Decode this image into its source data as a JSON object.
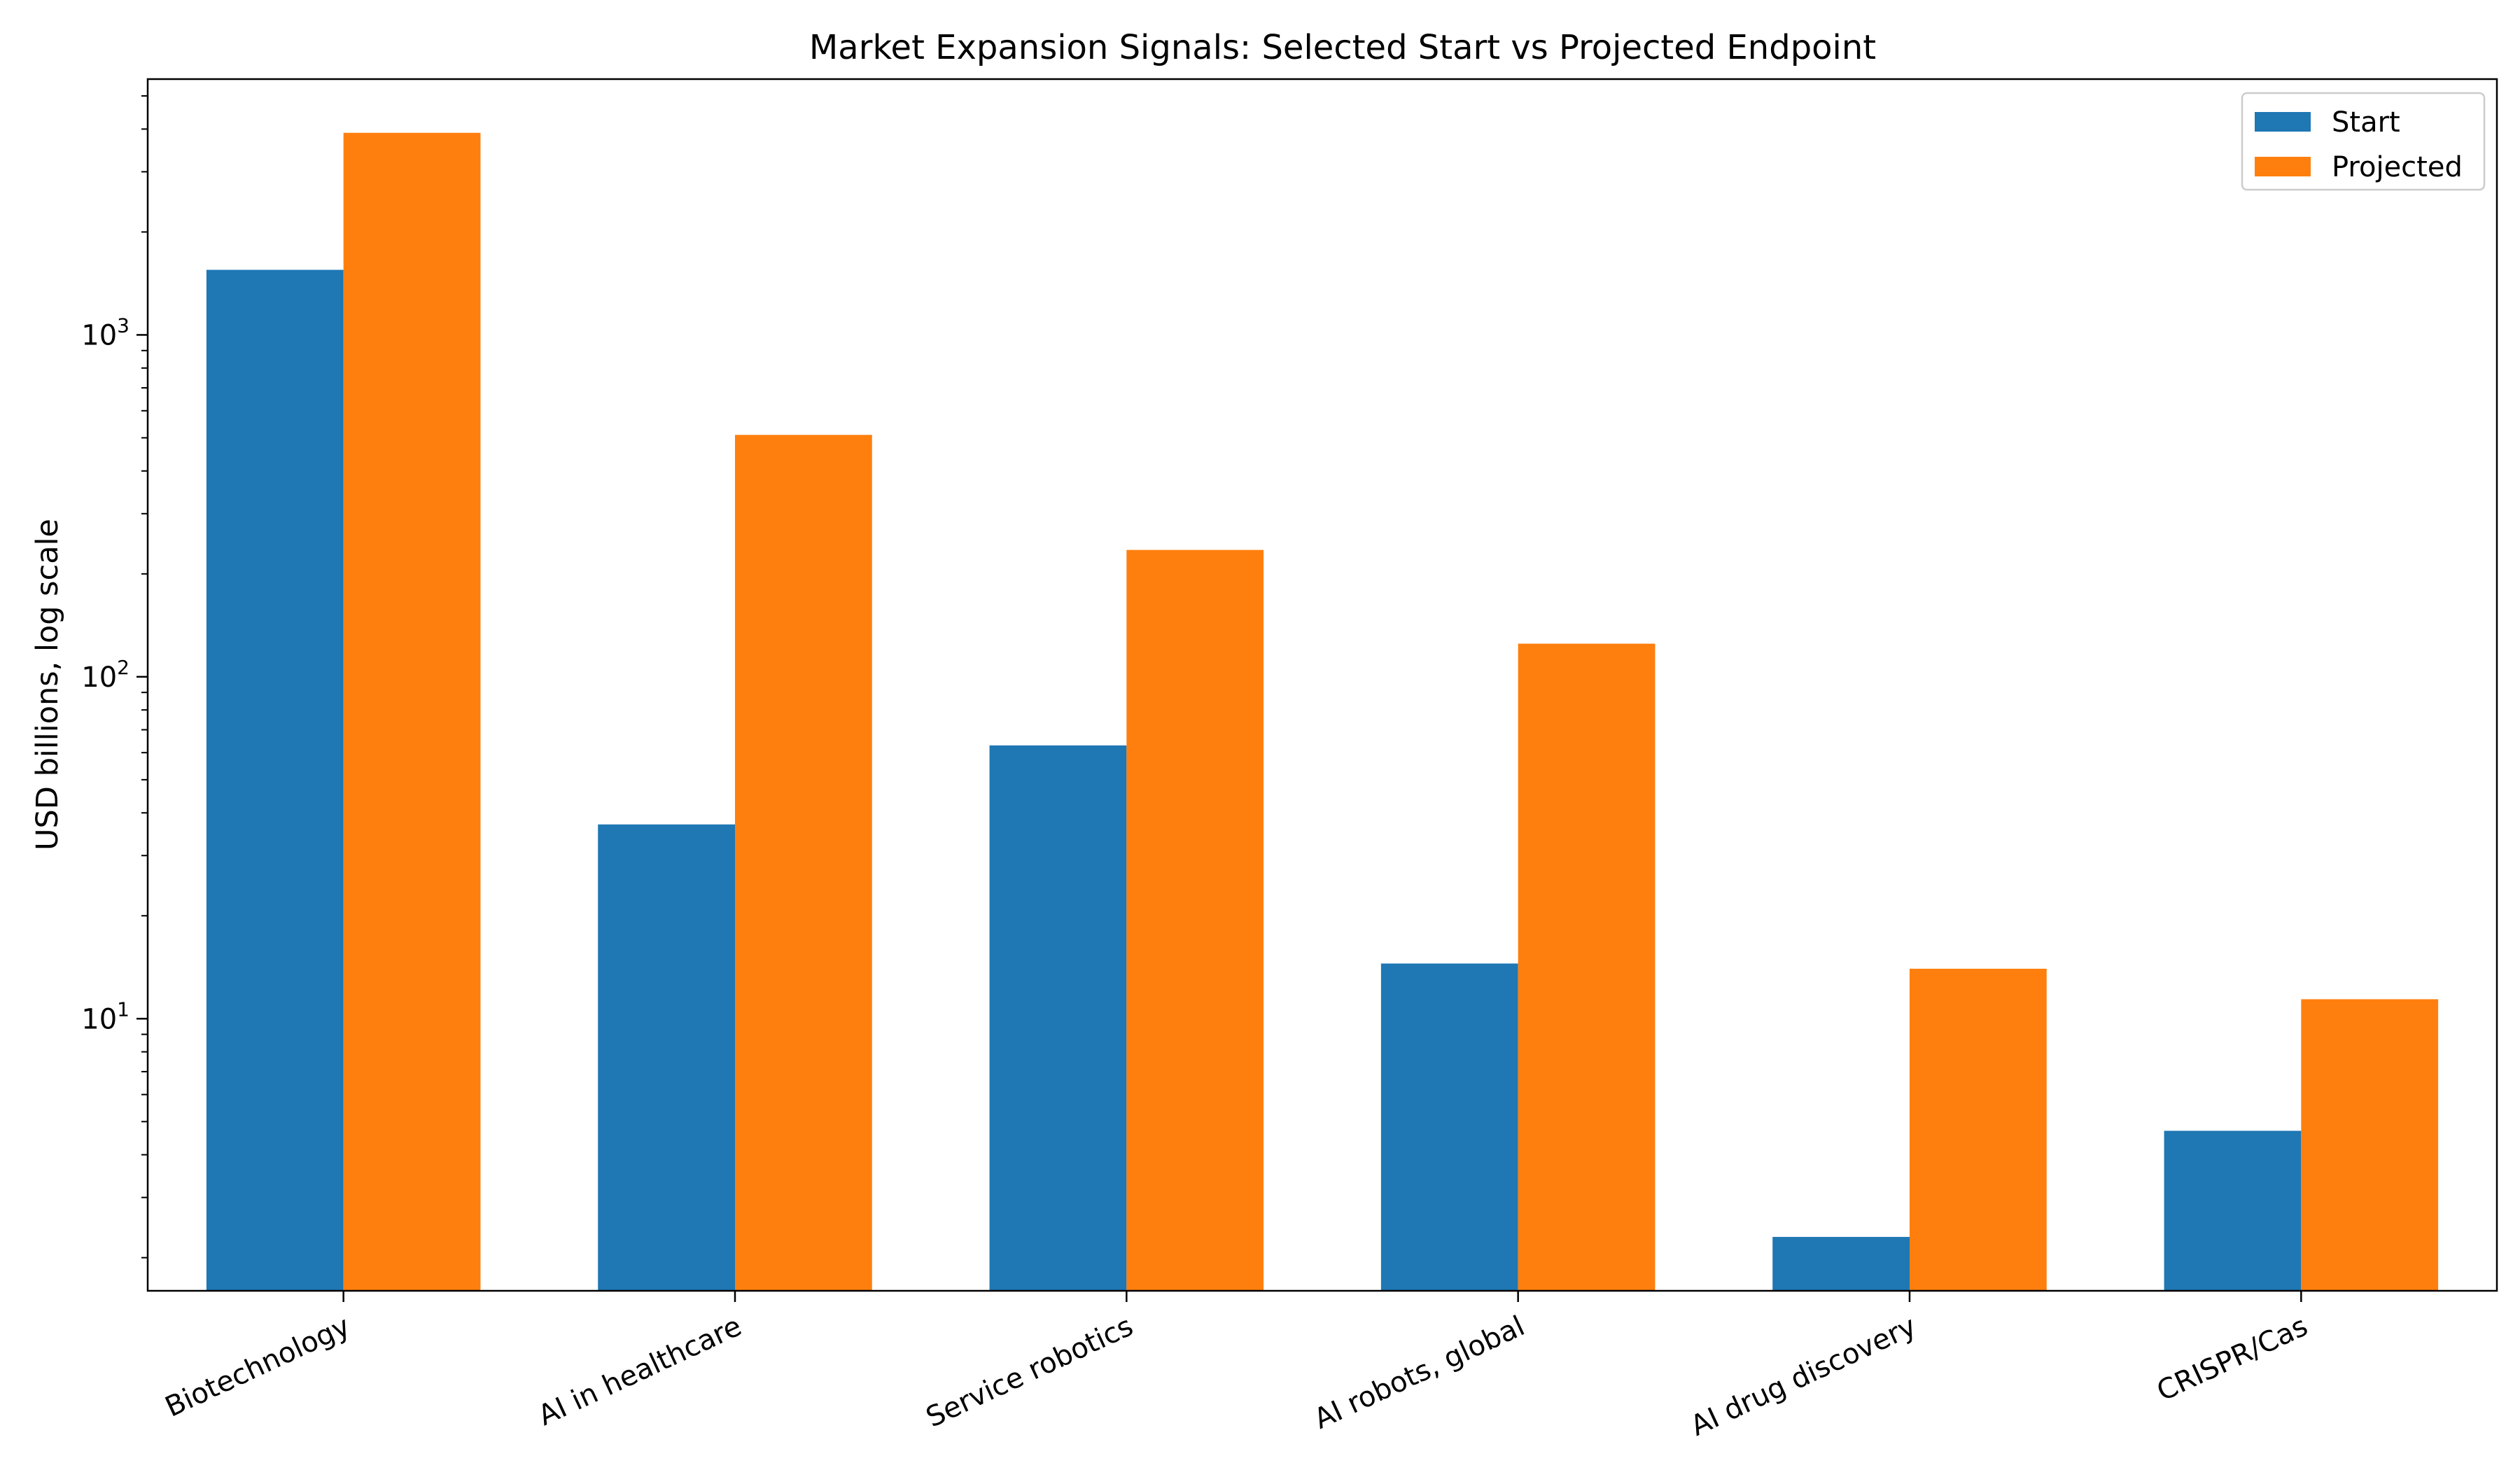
{
  "chart_data": {
    "type": "bar",
    "title": "Market Expansion Signals: Selected Start vs Projected Endpoint",
    "xlabel": "",
    "ylabel": "USD billions, log scale",
    "yscale": "log",
    "ylim": [
      1.6,
      5600
    ],
    "y_ticks": [
      {
        "value": 10,
        "label": "10",
        "exp": "1"
      },
      {
        "value": 100,
        "label": "10",
        "exp": "2"
      },
      {
        "value": 1000,
        "label": "10",
        "exp": "3"
      }
    ],
    "categories": [
      "Biotechnology",
      "AI in healthcare",
      "Service robotics",
      "AI robots, global",
      "AI drug discovery",
      "CRISPR/Cas"
    ],
    "series": [
      {
        "name": "Start",
        "color": "#1f77b4",
        "values": [
          1550,
          37,
          63,
          14.5,
          2.3,
          4.7
        ]
      },
      {
        "name": "Projected",
        "color": "#ff7f0e",
        "values": [
          3900,
          510,
          235,
          125,
          14,
          11.4
        ]
      }
    ],
    "grid": false,
    "legend": "upper right"
  }
}
